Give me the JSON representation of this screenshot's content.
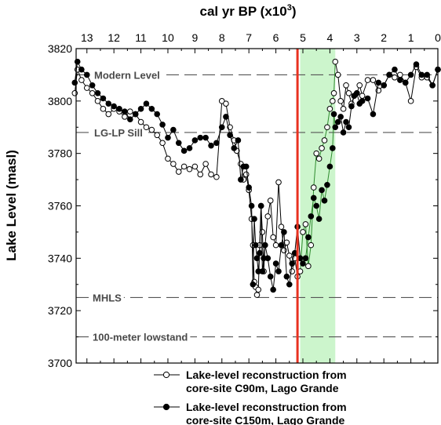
{
  "chart_data": {
    "type": "line",
    "xlabel": "cal yr BP (x10",
    "xlabel_sup": "3",
    "xlabel_close": ")",
    "ylabel": "Lake Level (masl)",
    "xlim": [
      13.4,
      0
    ],
    "ylim": [
      3700,
      3820
    ],
    "x_ticks": [
      "13",
      "12",
      "11",
      "10",
      "9",
      "8",
      "7",
      "6",
      "5",
      "4",
      "3",
      "2",
      "1",
      "0"
    ],
    "y_ticks": [
      "3700",
      "3720",
      "3740",
      "3760",
      "3780",
      "3800",
      "3820"
    ],
    "grid": false,
    "reference_lines": [
      {
        "label": "Modern Level",
        "y": 3810
      },
      {
        "label": "LG-LP Sill",
        "y": 3788
      },
      {
        "label": "MHLS",
        "y": 3725
      },
      {
        "label": "100-meter lowstand",
        "y": 3710
      }
    ],
    "highlight_band": {
      "x_from": 5.1,
      "x_to": 3.8,
      "color": "#ccf5cc"
    },
    "vertical_marker": {
      "x": 5.2,
      "color": "#e8311f"
    },
    "legend_position": "bottom",
    "series": [
      {
        "name": "Lake-level reconstruction from core-site C90m, Lago Grande",
        "marker": "open-circle",
        "x": [
          13.45,
          13.35,
          13.2,
          13.0,
          12.8,
          12.6,
          12.4,
          12.2,
          12.0,
          11.8,
          11.6,
          11.4,
          11.2,
          11.0,
          10.8,
          10.6,
          10.4,
          10.2,
          10.0,
          9.8,
          9.6,
          9.4,
          9.2,
          9.0,
          8.8,
          8.6,
          8.4,
          8.2,
          8.0,
          7.85,
          7.7,
          7.55,
          7.45,
          7.3,
          7.2,
          7.1,
          7.0,
          6.9,
          6.85,
          6.8,
          6.75,
          6.7,
          6.65,
          6.6,
          6.55,
          6.5,
          6.45,
          6.4,
          6.3,
          6.2,
          6.1,
          6.0,
          5.9,
          5.8,
          5.7,
          5.6,
          5.5,
          5.4,
          5.3,
          5.2,
          5.1,
          5.0,
          4.9,
          4.8,
          4.7,
          4.6,
          4.5,
          4.4,
          4.3,
          4.2,
          4.1,
          4.0,
          3.9,
          3.85,
          3.8,
          3.7,
          3.6,
          3.5,
          3.4,
          3.3,
          3.2,
          3.1,
          3.0,
          2.9,
          2.8,
          2.6,
          2.4,
          2.2,
          2.0,
          1.8,
          1.6,
          1.4,
          1.2,
          1.0,
          0.8,
          0.6,
          0.4,
          0.2,
          0.0
        ],
        "y": [
          3803,
          3812,
          3808,
          3805,
          3803,
          3800,
          3797,
          3795,
          3797,
          3796,
          3794,
          3796,
          3795,
          3792,
          3790,
          3789,
          3787,
          3784,
          3778,
          3776,
          3773,
          3775,
          3774,
          3775,
          3772,
          3776,
          3772,
          3771,
          3800,
          3799,
          3790,
          3785,
          3781,
          3776,
          3770,
          3772,
          3766,
          3755,
          3745,
          3731,
          3729,
          3726,
          3728,
          3745,
          3760,
          3750,
          3735,
          3745,
          3756,
          3762,
          3748,
          3745,
          3769,
          3752,
          3743,
          3746,
          3741,
          3735,
          3740,
          3733,
          3735,
          3750,
          3753,
          3737,
          3745,
          3767,
          3780,
          3778,
          3782,
          3785,
          3790,
          3797,
          3800,
          3803,
          3815,
          3810,
          3800,
          3797,
          3806,
          3803,
          3799,
          3802,
          3803,
          3806,
          3802,
          3808,
          3808,
          3804,
          3806,
          3810,
          3809,
          3810,
          3807,
          3800,
          3813,
          3809,
          3809,
          3806,
          3812
        ]
      },
      {
        "name": "Lake-level reconstruction from core-site C150m, Lago Grande",
        "marker": "filled-circle",
        "x": [
          13.45,
          13.35,
          13.2,
          13.0,
          12.8,
          12.6,
          12.4,
          12.2,
          12.0,
          11.8,
          11.6,
          11.4,
          11.2,
          11.0,
          10.8,
          10.6,
          10.4,
          10.2,
          10.0,
          9.8,
          9.6,
          9.4,
          9.2,
          9.0,
          8.8,
          8.6,
          8.4,
          8.2,
          8.0,
          7.85,
          7.7,
          7.55,
          7.4,
          7.3,
          7.2,
          7.1,
          7.0,
          6.9,
          6.85,
          6.8,
          6.75,
          6.7,
          6.65,
          6.6,
          6.55,
          6.5,
          6.45,
          6.4,
          6.3,
          6.2,
          6.1,
          6.0,
          5.9,
          5.8,
          5.7,
          5.6,
          5.5,
          5.4,
          5.3,
          5.2,
          5.1,
          5.0,
          4.9,
          4.8,
          4.7,
          4.6,
          4.5,
          4.4,
          4.3,
          4.2,
          4.1,
          4.0,
          3.9,
          3.85,
          3.8,
          3.7,
          3.6,
          3.5,
          3.4,
          3.3,
          3.2,
          3.1,
          3.0,
          2.9,
          2.8,
          2.6,
          2.4,
          2.2,
          2.0,
          1.8,
          1.6,
          1.4,
          1.2,
          1.0,
          0.8,
          0.6,
          0.4,
          0.2,
          0.0
        ],
        "y": [
          3807,
          3815,
          3812,
          3810,
          3806,
          3803,
          3801,
          3799,
          3798,
          3797,
          3796,
          3793,
          3795,
          3797,
          3799,
          3797,
          3795,
          3791,
          3786,
          3789,
          3784,
          3781,
          3782,
          3785,
          3786,
          3786,
          3783,
          3784,
          3790,
          3794,
          3787,
          3782,
          3785,
          3770,
          3775,
          3775,
          3767,
          3760,
          3730,
          3755,
          3745,
          3740,
          3735,
          3742,
          3760,
          3735,
          3740,
          3745,
          3740,
          3733,
          3728,
          3738,
          3735,
          3745,
          3750,
          3733,
          3730,
          3738,
          3742,
          3752,
          3740,
          3738,
          3740,
          3748,
          3756,
          3763,
          3760,
          3755,
          3766,
          3762,
          3768,
          3775,
          3782,
          3795,
          3790,
          3792,
          3794,
          3788,
          3792,
          3790,
          3798,
          3802,
          3803,
          3799,
          3800,
          3801,
          3795,
          3807,
          3806,
          3810,
          3812,
          3808,
          3807,
          3810,
          3814,
          3810,
          3810,
          3806,
          3812
        ]
      }
    ]
  }
}
